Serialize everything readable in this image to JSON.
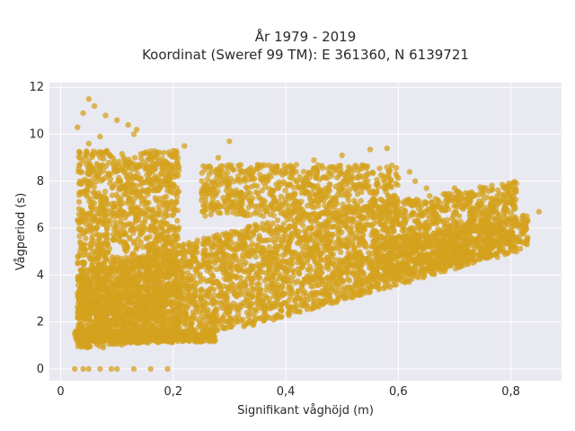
{
  "chart_data": {
    "type": "scatter",
    "title_line1": "År 1979 - 2019",
    "title_line2": "Koordinat (Sweref 99 TM): E 361360, N 6139721",
    "xlabel": "Signifikant våghöjd (m)",
    "ylabel": "Vågperiod (s)",
    "xlim": [
      -0.02,
      0.89
    ],
    "ylim": [
      -0.5,
      12.2
    ],
    "x_ticks": [
      0,
      0.2,
      0.4,
      0.6,
      0.8
    ],
    "x_tick_labels": [
      "0",
      "0,2",
      "0,4",
      "0,6",
      "0,8"
    ],
    "y_ticks": [
      0,
      2,
      4,
      6,
      8,
      10,
      12
    ],
    "y_tick_labels": [
      "0",
      "2",
      "4",
      "6",
      "8",
      "10",
      "12"
    ],
    "grid": true,
    "point_color": "#d4a21e",
    "plot_background": "#e9e9f1",
    "outliers": [
      [
        0.05,
        11.5
      ],
      [
        0.06,
        11.2
      ],
      [
        0.04,
        10.9
      ],
      [
        0.08,
        10.8
      ],
      [
        0.03,
        10.3
      ],
      [
        0.1,
        10.6
      ],
      [
        0.12,
        10.4
      ],
      [
        0.135,
        10.2
      ],
      [
        0.05,
        9.6
      ],
      [
        0.07,
        9.9
      ],
      [
        0.13,
        10.0
      ],
      [
        0.2,
        9.3
      ],
      [
        0.22,
        9.5
      ],
      [
        0.3,
        9.7
      ],
      [
        0.28,
        9.0
      ],
      [
        0.35,
        8.7
      ],
      [
        0.45,
        8.9
      ],
      [
        0.5,
        9.1
      ],
      [
        0.55,
        9.35
      ],
      [
        0.58,
        9.4
      ],
      [
        0.62,
        8.4
      ],
      [
        0.63,
        8.0
      ],
      [
        0.65,
        7.7
      ],
      [
        0.7,
        7.7
      ],
      [
        0.72,
        7.5
      ],
      [
        0.75,
        7.4
      ],
      [
        0.79,
        7.7
      ],
      [
        0.8,
        6.4
      ],
      [
        0.83,
        6.3
      ],
      [
        0.85,
        6.7
      ],
      [
        0.025,
        0.0
      ],
      [
        0.04,
        0.0
      ],
      [
        0.05,
        0.0
      ],
      [
        0.07,
        0.0
      ],
      [
        0.09,
        0.0
      ],
      [
        0.1,
        0.0
      ],
      [
        0.13,
        0.0
      ],
      [
        0.16,
        0.0
      ],
      [
        0.19,
        0.0
      ],
      [
        0.025,
        1.5
      ],
      [
        0.03,
        1.3
      ],
      [
        0.2,
        1.3
      ],
      [
        0.27,
        1.3
      ],
      [
        0.35,
        2.6
      ],
      [
        0.55,
        3.3
      ]
    ]
  }
}
